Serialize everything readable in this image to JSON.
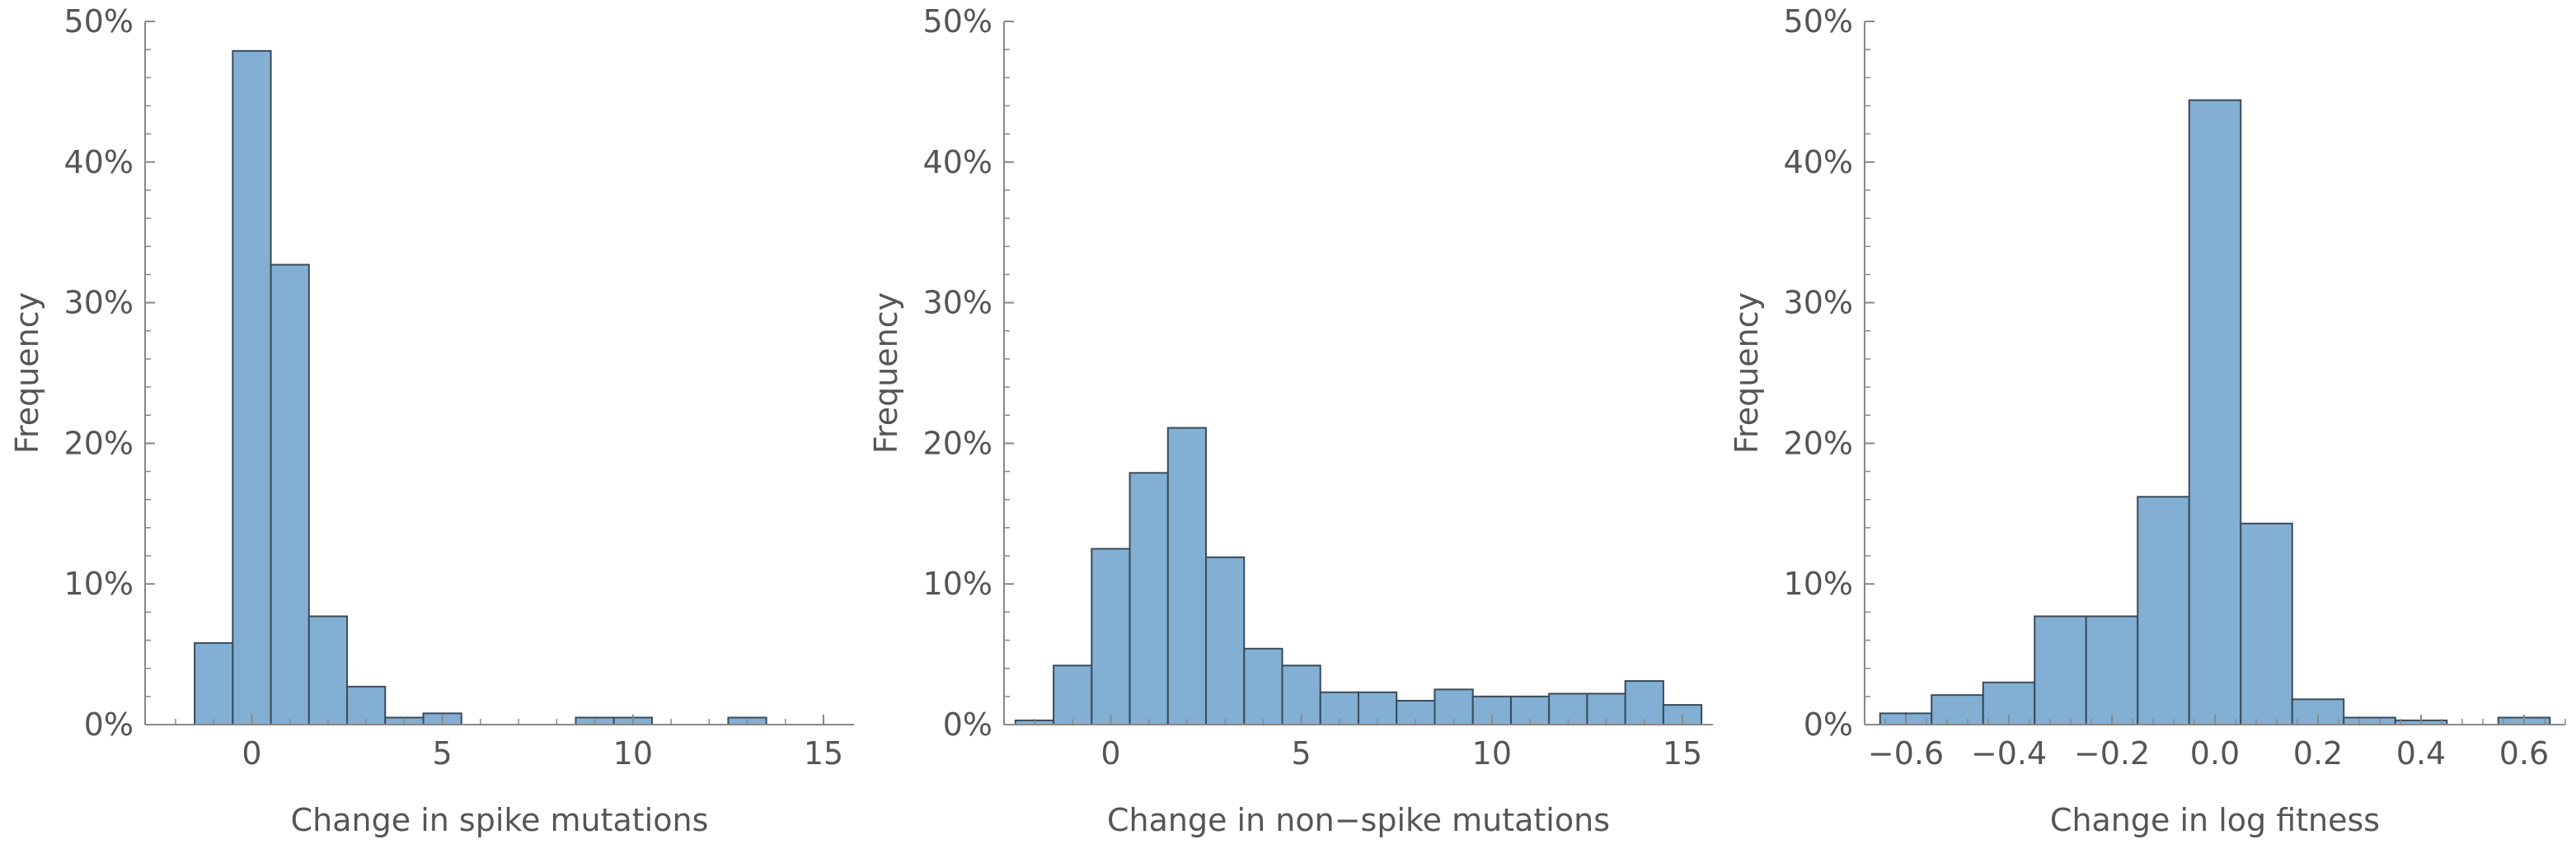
{
  "chart_data": [
    {
      "type": "bar",
      "subtype": "histogram",
      "xlabel": "Change in spike mutations",
      "ylabel": "Frequency",
      "xlim": [
        -2.8,
        15.8
      ],
      "ylim": [
        0,
        50
      ],
      "xticks": [
        0,
        5,
        10,
        15
      ],
      "xtick_labels": [
        "0",
        "5",
        "10",
        "15"
      ],
      "yticks": [
        0,
        10,
        20,
        30,
        40,
        50
      ],
      "ytick_labels": [
        "0%",
        "10%",
        "20%",
        "30%",
        "40%",
        "50%"
      ],
      "bin_width": 1,
      "bins": [
        {
          "x0": -1.5,
          "x1": -0.5,
          "value": 5.8
        },
        {
          "x0": -0.5,
          "x1": 0.5,
          "value": 47.9
        },
        {
          "x0": 0.5,
          "x1": 1.5,
          "value": 32.7
        },
        {
          "x0": 1.5,
          "x1": 2.5,
          "value": 7.7
        },
        {
          "x0": 2.5,
          "x1": 3.5,
          "value": 2.7
        },
        {
          "x0": 3.5,
          "x1": 4.5,
          "value": 0.5
        },
        {
          "x0": 4.5,
          "x1": 5.5,
          "value": 0.8
        },
        {
          "x0": 8.5,
          "x1": 9.5,
          "value": 0.5
        },
        {
          "x0": 9.5,
          "x1": 10.5,
          "value": 0.5
        },
        {
          "x0": 12.5,
          "x1": 13.5,
          "value": 0.5
        }
      ],
      "grid": false,
      "bar_color": "#82afd3"
    },
    {
      "type": "bar",
      "subtype": "histogram",
      "xlabel": "Change in non−spike mutations",
      "ylabel": "Frequency",
      "xlim": [
        -2.8,
        15.8
      ],
      "ylim": [
        0,
        50
      ],
      "xticks": [
        0,
        5,
        10,
        15
      ],
      "xtick_labels": [
        "0",
        "5",
        "10",
        "15"
      ],
      "yticks": [
        0,
        10,
        20,
        30,
        40,
        50
      ],
      "ytick_labels": [
        "0%",
        "10%",
        "20%",
        "30%",
        "40%",
        "50%"
      ],
      "bin_width": 1,
      "bins": [
        {
          "x0": -2.5,
          "x1": -1.5,
          "value": 0.3
        },
        {
          "x0": -1.5,
          "x1": -0.5,
          "value": 4.2
        },
        {
          "x0": -0.5,
          "x1": 0.5,
          "value": 12.5
        },
        {
          "x0": 0.5,
          "x1": 1.5,
          "value": 17.9
        },
        {
          "x0": 1.5,
          "x1": 2.5,
          "value": 21.1
        },
        {
          "x0": 2.5,
          "x1": 3.5,
          "value": 11.9
        },
        {
          "x0": 3.5,
          "x1": 4.5,
          "value": 5.4
        },
        {
          "x0": 4.5,
          "x1": 5.5,
          "value": 4.2
        },
        {
          "x0": 5.5,
          "x1": 6.5,
          "value": 2.3
        },
        {
          "x0": 6.5,
          "x1": 7.5,
          "value": 2.3
        },
        {
          "x0": 7.5,
          "x1": 8.5,
          "value": 1.7
        },
        {
          "x0": 8.5,
          "x1": 9.5,
          "value": 2.5
        },
        {
          "x0": 9.5,
          "x1": 10.5,
          "value": 2.0
        },
        {
          "x0": 10.5,
          "x1": 11.5,
          "value": 2.0
        },
        {
          "x0": 11.5,
          "x1": 12.5,
          "value": 2.2
        },
        {
          "x0": 12.5,
          "x1": 13.5,
          "value": 2.2
        },
        {
          "x0": 13.5,
          "x1": 14.5,
          "value": 3.1
        },
        {
          "x0": 14.5,
          "x1": 15.5,
          "value": 1.4
        }
      ],
      "grid": false,
      "bar_color": "#82afd3"
    },
    {
      "type": "bar",
      "subtype": "histogram",
      "xlabel": "Change in log fitness",
      "ylabel": "Frequency",
      "xlim": [
        -0.68,
        0.68
      ],
      "ylim": [
        0,
        50
      ],
      "xticks": [
        -0.6,
        -0.4,
        -0.2,
        0.0,
        0.2,
        0.4,
        0.6
      ],
      "xtick_labels": [
        "−0.6",
        "−0.4",
        "−0.2",
        "0.0",
        "0.2",
        "0.4",
        "0.6"
      ],
      "yticks": [
        0,
        10,
        20,
        30,
        40,
        50
      ],
      "ytick_labels": [
        "0%",
        "10%",
        "20%",
        "30%",
        "40%",
        "50%"
      ],
      "bins": [
        {
          "x0": -0.65,
          "x1": -0.6,
          "value": 0.8
        },
        {
          "x0": -0.6,
          "x1": -0.55,
          "value": 0.8
        },
        {
          "x0": -0.55,
          "x1": -0.45,
          "value": 2.1
        },
        {
          "x0": -0.45,
          "x1": -0.35,
          "value": 3.0
        },
        {
          "x0": -0.35,
          "x1": -0.25,
          "value": 7.7
        },
        {
          "x0": -0.25,
          "x1": -0.15,
          "value": 7.7
        },
        {
          "x0": -0.15,
          "x1": -0.05,
          "value": 16.2
        },
        {
          "x0": -0.05,
          "x1": 0.05,
          "value": 44.4
        },
        {
          "x0": 0.05,
          "x1": 0.15,
          "value": 14.3
        },
        {
          "x0": 0.15,
          "x1": 0.25,
          "value": 1.8
        },
        {
          "x0": 0.25,
          "x1": 0.35,
          "value": 0.5
        },
        {
          "x0": 0.35,
          "x1": 0.45,
          "value": 0.3
        },
        {
          "x0": 0.55,
          "x1": 0.65,
          "value": 0.5
        }
      ],
      "grid": false,
      "bar_color": "#82afd3"
    }
  ]
}
